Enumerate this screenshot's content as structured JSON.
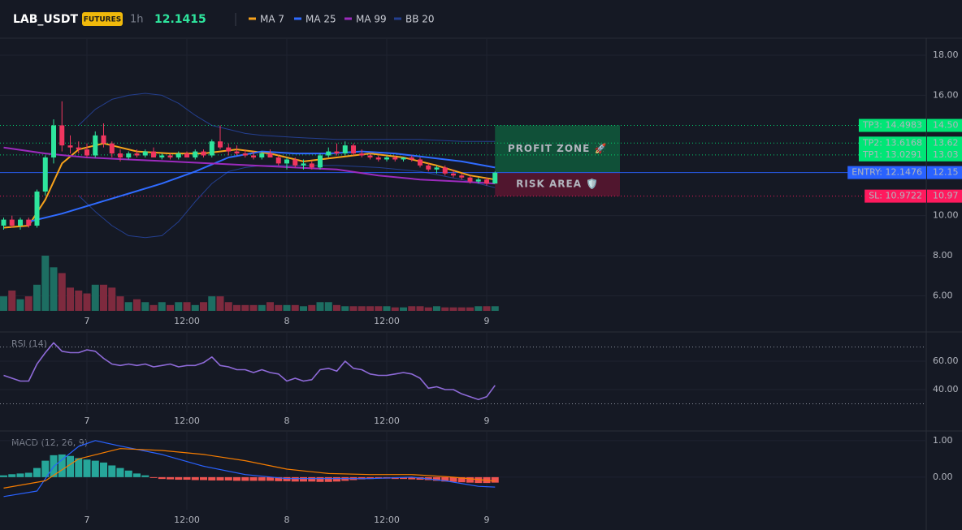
{
  "chart_data": [
    {
      "type": "candlestick",
      "title": "LAB_USDT",
      "badge": "FUTURES",
      "interval": "1h",
      "last_price": 12.1415,
      "xlim": [
        -10.44,
        100.78
      ],
      "ylim": [
        5.25,
        18.81
      ],
      "xticks": [
        {
          "value": 0,
          "label": "7"
        },
        {
          "value": 12,
          "label": "12:00"
        },
        {
          "value": 24,
          "label": "8"
        },
        {
          "value": 36,
          "label": "12:00"
        },
        {
          "value": 48,
          "label": "9"
        }
      ],
      "yticks": [
        {
          "value": 6,
          "label": "6.00"
        },
        {
          "value": 8,
          "label": "8.00"
        },
        {
          "value": 10,
          "label": "10.00"
        },
        {
          "value": 16,
          "label": "16.00"
        },
        {
          "value": 18,
          "label": "18.00"
        }
      ],
      "grid": true,
      "up_color": "#2ee59d",
      "down_color": "#f0365f",
      "volume_up_color": "#1d6e62",
      "volume_down_color": "#7e2a3e",
      "x": [
        -10,
        -9,
        -8,
        -7,
        -6,
        -5,
        -4,
        -3,
        -2,
        -1,
        0,
        1,
        2,
        3,
        4,
        5,
        6,
        7,
        8,
        9,
        10,
        11,
        12,
        13,
        14,
        15,
        16,
        17,
        18,
        19,
        20,
        21,
        22,
        23,
        24,
        25,
        26,
        27,
        28,
        29,
        30,
        31,
        32,
        33,
        34,
        35,
        36,
        37,
        38,
        39,
        40,
        41,
        42,
        43,
        44,
        45,
        46,
        47,
        48,
        49
      ],
      "open": [
        9.5,
        9.8,
        9.5,
        9.8,
        9.5,
        11.2,
        12.9,
        14.5,
        13.5,
        13.4,
        13.3,
        13.0,
        14.0,
        13.6,
        13.1,
        12.9,
        13.1,
        13.0,
        13.2,
        12.9,
        13.0,
        12.9,
        13.1,
        12.9,
        13.2,
        13.0,
        13.7,
        13.4,
        13.2,
        13.1,
        13.0,
        12.9,
        13.1,
        12.9,
        12.6,
        12.8,
        12.5,
        12.6,
        12.4,
        13.0,
        13.2,
        13.1,
        13.5,
        13.1,
        13.0,
        12.9,
        12.8,
        12.9,
        12.8,
        12.9,
        12.8,
        12.5,
        12.3,
        12.4,
        12.1,
        12.0,
        11.9,
        11.7,
        11.8,
        11.6
      ],
      "high": [
        9.9,
        10.0,
        9.9,
        9.9,
        11.3,
        13.0,
        14.8,
        15.7,
        14.0,
        13.7,
        13.6,
        14.2,
        14.6,
        13.7,
        13.3,
        13.2,
        13.3,
        13.3,
        13.4,
        13.1,
        13.1,
        13.2,
        13.2,
        13.3,
        13.3,
        13.8,
        14.5,
        13.6,
        13.5,
        13.3,
        13.2,
        13.2,
        13.3,
        13.0,
        12.9,
        12.9,
        12.8,
        12.7,
        13.1,
        13.4,
        13.6,
        13.7,
        13.6,
        13.3,
        13.1,
        13.0,
        13.0,
        13.0,
        12.9,
        13.0,
        12.9,
        12.6,
        12.5,
        12.5,
        12.3,
        12.1,
        12.0,
        11.9,
        11.9,
        12.2
      ],
      "low": [
        9.3,
        9.4,
        9.3,
        9.4,
        9.4,
        11.0,
        12.6,
        13.2,
        13.1,
        13.1,
        12.9,
        12.9,
        13.4,
        12.9,
        12.7,
        12.8,
        12.9,
        12.9,
        12.9,
        12.8,
        12.8,
        12.8,
        12.9,
        12.8,
        12.9,
        12.9,
        13.3,
        13.0,
        13.0,
        12.9,
        12.8,
        12.8,
        12.9,
        12.5,
        12.3,
        12.4,
        12.3,
        12.3,
        12.3,
        12.9,
        13.0,
        13.0,
        13.0,
        12.9,
        12.8,
        12.7,
        12.7,
        12.7,
        12.7,
        12.7,
        12.4,
        12.2,
        12.1,
        12.0,
        11.9,
        11.8,
        11.6,
        11.6,
        11.5,
        11.6
      ],
      "close": [
        9.8,
        9.5,
        9.8,
        9.5,
        11.2,
        12.9,
        14.5,
        13.5,
        13.4,
        13.3,
        13.0,
        14.0,
        13.6,
        13.1,
        12.9,
        13.1,
        13.0,
        13.2,
        12.9,
        13.0,
        12.9,
        13.1,
        12.9,
        13.2,
        13.0,
        13.7,
        13.4,
        13.2,
        13.1,
        13.0,
        12.9,
        13.1,
        12.9,
        12.6,
        12.8,
        12.5,
        12.6,
        12.4,
        13.0,
        13.2,
        13.1,
        13.5,
        13.1,
        13.0,
        12.9,
        12.8,
        12.9,
        12.8,
        12.9,
        12.8,
        12.5,
        12.3,
        12.4,
        12.1,
        12.0,
        11.9,
        11.7,
        11.8,
        11.6,
        12.1415
      ],
      "volume": [
        25,
        35,
        20,
        25,
        45,
        95,
        75,
        65,
        40,
        35,
        30,
        45,
        45,
        40,
        25,
        15,
        20,
        15,
        10,
        15,
        10,
        15,
        15,
        10,
        15,
        25,
        25,
        15,
        10,
        10,
        10,
        10,
        15,
        10,
        10,
        10,
        8,
        10,
        15,
        15,
        10,
        8,
        8,
        8,
        8,
        8,
        8,
        6,
        6,
        8,
        8,
        6,
        8,
        6,
        6,
        6,
        6,
        8,
        8,
        8
      ],
      "series": [
        {
          "name": "MA 7",
          "color": "#f7a21b",
          "x": [
            -10,
            -7,
            -5,
            -3,
            -1,
            2,
            6,
            10,
            14,
            18,
            22,
            26,
            30,
            34,
            38,
            42,
            46,
            49
          ],
          "values": [
            9.4,
            9.5,
            10.8,
            12.6,
            13.3,
            13.6,
            13.2,
            13.1,
            13.1,
            13.3,
            13.1,
            12.7,
            12.9,
            13.1,
            12.9,
            12.5,
            12.0,
            11.8
          ]
        },
        {
          "name": "MA 25",
          "color": "#2f6bff",
          "x": [
            -7,
            -3,
            1,
            5,
            9,
            13,
            17,
            21,
            25,
            29,
            33,
            37,
            41,
            45,
            49
          ],
          "values": [
            9.7,
            10.1,
            10.6,
            11.1,
            11.6,
            12.2,
            12.9,
            13.2,
            13.1,
            13.1,
            13.2,
            13.1,
            12.9,
            12.7,
            12.4
          ]
        },
        {
          "name": "MA 99",
          "color": "#9c2bbd",
          "x": [
            -10,
            -5,
            0,
            5,
            10,
            15,
            20,
            25,
            30,
            35,
            40,
            45,
            49
          ],
          "values": [
            13.4,
            13.1,
            12.9,
            12.8,
            12.7,
            12.6,
            12.5,
            12.4,
            12.3,
            12.0,
            11.8,
            11.7,
            11.6
          ]
        }
      ],
      "bands": {
        "name": "BB 20",
        "color": "#243f8f",
        "x": [
          -1,
          1,
          3,
          5,
          7,
          9,
          11,
          13,
          15,
          17,
          19,
          21,
          25,
          30,
          35,
          40,
          45,
          49
        ],
        "upper": [
          14.5,
          15.3,
          15.8,
          16.0,
          16.1,
          16.0,
          15.6,
          15.0,
          14.5,
          14.3,
          14.1,
          14.0,
          13.9,
          13.8,
          13.8,
          13.8,
          13.7,
          13.7
        ],
        "lower": [
          11.0,
          10.2,
          9.5,
          9.0,
          8.9,
          9.0,
          9.7,
          10.7,
          11.6,
          12.2,
          12.4,
          12.5,
          12.5,
          12.5,
          12.4,
          12.2,
          11.8,
          11.4
        ]
      },
      "levels": [
        {
          "label": "TP3: 14.4983",
          "value": 14.4983,
          "axis_label": "14.50",
          "color": "#00e676",
          "text_color": "#0b1a12",
          "style": "dotted"
        },
        {
          "label": "TP2: 13.6168",
          "value": 13.6168,
          "axis_label": "13.62",
          "color": "#00e676",
          "text_color": "#0b1a12",
          "style": "dotted"
        },
        {
          "label": "TP1: 13.0291",
          "value": 13.0291,
          "axis_label": "13.03",
          "color": "#00e676",
          "text_color": "#0b1a12",
          "style": "dotted"
        },
        {
          "label": "ENTRY: 12.1476",
          "value": 12.1476,
          "axis_label": "12.15",
          "color": "#2962ff",
          "text_color": "#ffffff",
          "style": "solid"
        },
        {
          "label": "SL: 10.9722",
          "value": 10.9722,
          "axis_label": "10.97",
          "color": "#ff1a5e",
          "text_color": "#ffffff",
          "style": "dotted"
        }
      ],
      "zones": [
        {
          "label": "PROFIT ZONE 🚀",
          "from": 12.1476,
          "to": 14.4983,
          "xrange": [
            49,
            64
          ],
          "color": "#0f5a3c",
          "text_color": "#2ee59d"
        },
        {
          "label": "RISK AREA 🛡️",
          "from": 10.9722,
          "to": 12.1476,
          "xrange": [
            49,
            64
          ],
          "color": "#5a1630",
          "text_color": "#ff3d77"
        }
      ]
    },
    {
      "type": "line",
      "title": "RSI (14)",
      "xlim": [
        -10.44,
        100.78
      ],
      "ylim": [
        24,
        80
      ],
      "xticks": [
        {
          "value": 0,
          "label": "7"
        },
        {
          "value": 12,
          "label": "12:00"
        },
        {
          "value": 24,
          "label": "8"
        },
        {
          "value": 36,
          "label": "12:00"
        },
        {
          "value": 48,
          "label": "9"
        }
      ],
      "yticks": [
        {
          "value": 40,
          "label": "40.00"
        },
        {
          "value": 60,
          "label": "60.00"
        }
      ],
      "levels": [
        30,
        70
      ],
      "color": "#8e6ad8",
      "grid": true,
      "x": [
        -10,
        -9,
        -8,
        -7,
        -6,
        -5,
        -4,
        -3,
        -2,
        -1,
        0,
        1,
        2,
        3,
        4,
        5,
        6,
        7,
        8,
        9,
        10,
        11,
        12,
        13,
        14,
        15,
        16,
        17,
        18,
        19,
        20,
        21,
        22,
        23,
        24,
        25,
        26,
        27,
        28,
        29,
        30,
        31,
        32,
        33,
        34,
        35,
        36,
        37,
        38,
        39,
        40,
        41,
        42,
        43,
        44,
        45,
        46,
        47,
        48,
        49
      ],
      "values": [
        50,
        48,
        46,
        46,
        58,
        66,
        73,
        67,
        66,
        66,
        68,
        67,
        62,
        58,
        57,
        58,
        57,
        58,
        56,
        57,
        58,
        56,
        57,
        57,
        59,
        63,
        57,
        56,
        54,
        54,
        52,
        54,
        52,
        51,
        46,
        48,
        46,
        47,
        54,
        55,
        53,
        60,
        55,
        54,
        51,
        50,
        50,
        51,
        52,
        51,
        48,
        41,
        42,
        40,
        40,
        37,
        35,
        33,
        35,
        43
      ]
    },
    {
      "type": "macd",
      "title": "MACD (12, 26, 9)",
      "xlim": [
        -10.44,
        100.78
      ],
      "ylim": [
        -0.89,
        1.24
      ],
      "xticks": [
        {
          "value": 0,
          "label": "7"
        },
        {
          "value": 12,
          "label": "12:00"
        },
        {
          "value": 24,
          "label": "8"
        },
        {
          "value": 36,
          "label": "12:00"
        },
        {
          "value": 48,
          "label": "9"
        }
      ],
      "yticks": [
        {
          "value": 0,
          "label": "0.00"
        },
        {
          "value": 1,
          "label": "1.00"
        }
      ],
      "grid": true,
      "up_color": "#26a69a",
      "down_color": "#ef5350",
      "x": [
        -10,
        -9,
        -8,
        -7,
        -6,
        -5,
        -4,
        -3,
        -2,
        -1,
        0,
        1,
        2,
        3,
        4,
        5,
        6,
        7,
        8,
        9,
        10,
        11,
        12,
        13,
        14,
        15,
        16,
        17,
        18,
        19,
        20,
        21,
        22,
        23,
        24,
        25,
        26,
        27,
        28,
        29,
        30,
        31,
        32,
        33,
        34,
        35,
        36,
        37,
        38,
        39,
        40,
        41,
        42,
        43,
        44,
        45,
        46,
        47,
        48,
        49
      ],
      "histogram": [
        0.05,
        0.08,
        0.1,
        0.12,
        0.25,
        0.45,
        0.6,
        0.62,
        0.58,
        0.52,
        0.48,
        0.45,
        0.4,
        0.32,
        0.25,
        0.18,
        0.1,
        0.05,
        -0.02,
        -0.05,
        -0.06,
        -0.07,
        -0.07,
        -0.08,
        -0.08,
        -0.09,
        -0.09,
        -0.09,
        -0.1,
        -0.1,
        -0.1,
        -0.1,
        -0.1,
        -0.11,
        -0.11,
        -0.12,
        -0.12,
        -0.12,
        -0.13,
        -0.13,
        -0.12,
        -0.1,
        -0.08,
        -0.06,
        -0.05,
        -0.04,
        -0.04,
        -0.05,
        -0.05,
        -0.06,
        -0.07,
        -0.08,
        -0.1,
        -0.12,
        -0.13,
        -0.14,
        -0.15,
        -0.16,
        -0.16,
        -0.15
      ],
      "series": [
        {
          "color": "#2962ff",
          "x": [
            -10,
            -6,
            -4,
            -1,
            1,
            4,
            9,
            14,
            19,
            24,
            29,
            34,
            39,
            43,
            47,
            49
          ],
          "values": [
            -0.53,
            -0.38,
            0.29,
            0.84,
            1.0,
            0.85,
            0.62,
            0.3,
            0.07,
            -0.04,
            -0.04,
            -0.04,
            0.0,
            -0.1,
            -0.25,
            -0.27
          ]
        },
        {
          "color": "#f57c00",
          "x": [
            -10,
            -5,
            -1,
            4,
            9,
            14,
            19,
            24,
            29,
            34,
            39,
            44,
            49
          ],
          "values": [
            -0.3,
            -0.1,
            0.5,
            0.78,
            0.73,
            0.62,
            0.45,
            0.22,
            0.1,
            0.07,
            0.07,
            0.0,
            -0.11
          ]
        }
      ]
    }
  ]
}
